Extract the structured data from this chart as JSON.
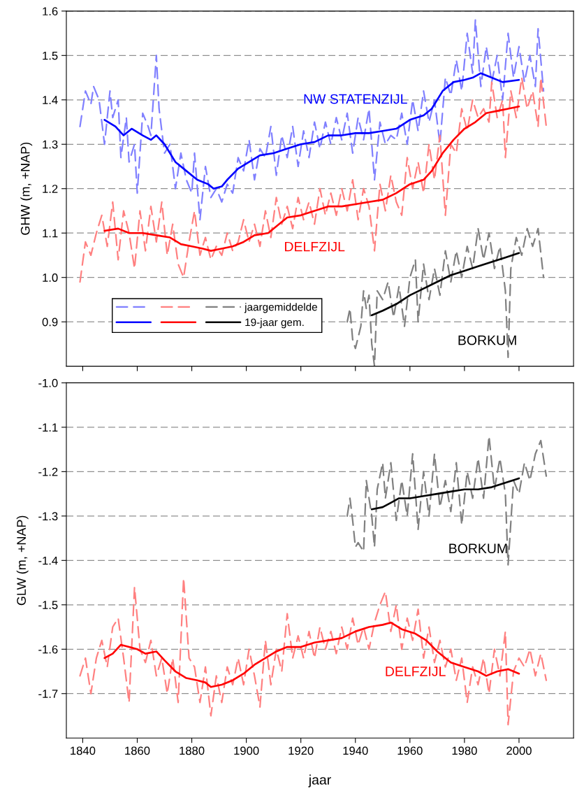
{
  "chart_data": [
    {
      "type": "line",
      "ylabel": "GHW (m, +NAP)",
      "xlim": [
        1834,
        2020
      ],
      "xticks": [
        1840,
        1860,
        1880,
        1900,
        1920,
        1940,
        1960,
        1980,
        2000
      ],
      "ylim": [
        0.8,
        1.6
      ],
      "yticks": [
        0.9,
        {
          "value": 1.0,
          "label": "1.0"
        },
        1.1,
        1.2,
        1.3,
        1.4,
        1.5,
        1.6
      ],
      "grid": "y",
      "tick_labels": "y",
      "legend": "bottom left",
      "annotations": [
        "BORKUM"
      ],
      "series": [
        {
          "color": "#8080ff",
          "line_style": "dashed",
          "x": [
            1839,
            1841,
            1843,
            1844,
            1846,
            1848,
            1850,
            1851,
            1853,
            1854,
            1856,
            1857,
            1859,
            1860,
            1862,
            1864,
            1865,
            1867,
            1868,
            1870,
            1872,
            1874,
            1876,
            1878,
            1880,
            1881,
            1883,
            1885,
            1887,
            1889,
            1891,
            1893,
            1895,
            1897,
            1899,
            1901,
            1903,
            1905,
            1907,
            1909,
            1911,
            1913,
            1915,
            1917,
            1919,
            1921,
            1923,
            1925,
            1927,
            1929,
            1931,
            1933,
            1935,
            1937,
            1939,
            1941,
            1943,
            1945,
            1947,
            1949,
            1951,
            1953,
            1955,
            1957,
            1959,
            1961,
            1963,
            1965,
            1967,
            1969,
            1971,
            1973,
            1975,
            1977,
            1979,
            1981,
            1983,
            1984,
            1986,
            1988,
            1990,
            1992,
            1994,
            1996,
            1998,
            2000,
            2002,
            2004,
            2006,
            2007,
            2009
          ],
          "values": [
            1.34,
            1.42,
            1.39,
            1.43,
            1.4,
            1.3,
            1.42,
            1.36,
            1.4,
            1.27,
            1.36,
            1.26,
            1.3,
            1.19,
            1.37,
            1.34,
            1.32,
            1.5,
            1.38,
            1.28,
            1.3,
            1.2,
            1.28,
            1.22,
            1.19,
            1.28,
            1.13,
            1.25,
            1.18,
            1.2,
            1.17,
            1.21,
            1.19,
            1.27,
            1.24,
            1.31,
            1.22,
            1.29,
            1.27,
            1.34,
            1.23,
            1.32,
            1.27,
            1.34,
            1.25,
            1.33,
            1.27,
            1.35,
            1.29,
            1.35,
            1.3,
            1.36,
            1.31,
            1.37,
            1.28,
            1.36,
            1.31,
            1.38,
            1.22,
            1.35,
            1.3,
            1.32,
            1.31,
            1.37,
            1.3,
            1.4,
            1.33,
            1.42,
            1.35,
            1.4,
            1.3,
            1.45,
            1.41,
            1.49,
            1.42,
            1.55,
            1.46,
            1.58,
            1.43,
            1.52,
            1.44,
            1.5,
            1.4,
            1.55,
            1.45,
            1.52,
            1.44,
            1.5,
            1.43,
            1.56,
            1.42
          ]
        },
        {
          "name": "NW STATENZIJL",
          "color": "#0000ff",
          "line_style": "solid",
          "x": [
            1848,
            1852,
            1855,
            1858,
            1862,
            1865,
            1867,
            1870,
            1874,
            1878,
            1882,
            1886,
            1888,
            1891,
            1893,
            1897,
            1901,
            1905,
            1910,
            1915,
            1920,
            1925,
            1930,
            1935,
            1940,
            1945,
            1950,
            1955,
            1960,
            1965,
            1968,
            1972,
            1976,
            1980,
            1983,
            1986,
            1990,
            1994,
            2000
          ],
          "values": [
            1.355,
            1.34,
            1.32,
            1.335,
            1.32,
            1.31,
            1.32,
            1.3,
            1.26,
            1.24,
            1.22,
            1.21,
            1.2,
            1.205,
            1.22,
            1.245,
            1.26,
            1.275,
            1.28,
            1.29,
            1.3,
            1.305,
            1.32,
            1.32,
            1.325,
            1.325,
            1.33,
            1.335,
            1.355,
            1.365,
            1.38,
            1.42,
            1.44,
            1.445,
            1.45,
            1.46,
            1.45,
            1.44,
            1.445
          ]
        },
        {
          "color": "#ff8080",
          "line_style": "dashed",
          "x": [
            1839,
            1841,
            1843,
            1845,
            1847,
            1849,
            1851,
            1853,
            1855,
            1857,
            1859,
            1861,
            1863,
            1865,
            1867,
            1869,
            1871,
            1873,
            1875,
            1877,
            1879,
            1881,
            1883,
            1885,
            1887,
            1889,
            1891,
            1893,
            1895,
            1897,
            1899,
            1901,
            1903,
            1905,
            1907,
            1909,
            1911,
            1913,
            1915,
            1917,
            1919,
            1921,
            1923,
            1925,
            1927,
            1929,
            1931,
            1933,
            1935,
            1937,
            1939,
            1941,
            1943,
            1945,
            1947,
            1949,
            1951,
            1953,
            1955,
            1957,
            1959,
            1961,
            1963,
            1965,
            1967,
            1969,
            1971,
            1973,
            1975,
            1977,
            1979,
            1981,
            1983,
            1985,
            1987,
            1989,
            1990,
            1992,
            1994,
            1995,
            1997,
            1999,
            2001,
            2003,
            2005,
            2007,
            2008,
            2010
          ],
          "values": [
            0.99,
            1.08,
            1.05,
            1.1,
            1.14,
            1.07,
            1.17,
            1.04,
            1.15,
            1.1,
            1.02,
            1.15,
            1.06,
            1.16,
            1.08,
            1.17,
            1.05,
            1.12,
            1.03,
            1.0,
            1.08,
            1.15,
            1.05,
            1.09,
            1.04,
            1.07,
            1.05,
            1.1,
            1.06,
            1.08,
            1.13,
            1.08,
            1.12,
            1.07,
            1.15,
            1.09,
            1.18,
            1.12,
            1.16,
            1.11,
            1.18,
            1.13,
            1.17,
            1.12,
            1.2,
            1.14,
            1.19,
            1.14,
            1.2,
            1.15,
            1.22,
            1.13,
            1.2,
            1.16,
            1.06,
            1.21,
            1.15,
            1.23,
            1.17,
            1.14,
            1.27,
            1.2,
            1.26,
            1.19,
            1.3,
            1.22,
            1.32,
            1.14,
            1.3,
            1.28,
            1.38,
            1.33,
            1.4,
            1.36,
            1.38,
            1.35,
            1.44,
            1.36,
            1.4,
            1.27,
            1.42,
            1.36,
            1.45,
            1.38,
            1.42,
            1.34,
            1.45,
            1.34
          ]
        },
        {
          "name": "DELFZIJL",
          "color": "#ff0000",
          "line_style": "solid",
          "x": [
            1848,
            1853,
            1857,
            1862,
            1867,
            1872,
            1876,
            1880,
            1884,
            1887,
            1891,
            1895,
            1899,
            1903,
            1908,
            1912,
            1915,
            1920,
            1925,
            1930,
            1935,
            1940,
            1945,
            1950,
            1955,
            1960,
            1965,
            1968,
            1972,
            1976,
            1980,
            1984,
            1988,
            1992,
            1996,
            2000
          ],
          "values": [
            1.105,
            1.11,
            1.1,
            1.1,
            1.095,
            1.09,
            1.075,
            1.07,
            1.065,
            1.06,
            1.065,
            1.07,
            1.08,
            1.095,
            1.1,
            1.12,
            1.135,
            1.14,
            1.15,
            1.16,
            1.16,
            1.165,
            1.17,
            1.175,
            1.19,
            1.21,
            1.22,
            1.24,
            1.28,
            1.31,
            1.335,
            1.35,
            1.37,
            1.375,
            1.38,
            1.385
          ]
        },
        {
          "name": "jaargemiddelde",
          "color": "#808080",
          "line_style": "dashed",
          "x": [
            1937,
            1938,
            1939,
            1940,
            1942,
            1943,
            1944,
            1945,
            1946,
            1947,
            1948,
            1950,
            1952,
            1954,
            1956,
            1958,
            1960,
            1962,
            1963,
            1965,
            1967,
            1969,
            1971,
            1973,
            1975,
            1977,
            1979,
            1981,
            1983,
            1985,
            1987,
            1989,
            1991,
            1993,
            1995,
            1996,
            1997,
            1999,
            2001,
            2003,
            2005,
            2007,
            2009
          ],
          "values": [
            0.9,
            0.93,
            0.86,
            0.84,
            0.89,
            0.97,
            0.93,
            0.96,
            0.85,
            0.8,
            0.97,
            0.95,
            0.99,
            0.91,
            0.98,
            0.89,
            1.0,
            1.04,
            0.9,
            1.03,
            0.95,
            1.02,
            0.96,
            1.06,
            0.99,
            1.06,
            1.0,
            1.07,
            1.02,
            1.11,
            1.04,
            1.1,
            1.02,
            1.07,
            0.97,
            0.82,
            1.02,
            1.09,
            1.05,
            1.11,
            1.07,
            1.11,
            1.0
          ]
        },
        {
          "name": "19-jaar gem.",
          "color": "#000000",
          "line_style": "solid",
          "x": [
            1946,
            1950,
            1955,
            1960,
            1965,
            1970,
            1975,
            1980,
            1985,
            1990,
            1995,
            2000
          ],
          "values": [
            0.915,
            0.925,
            0.94,
            0.96,
            0.975,
            0.99,
            1.005,
            1.015,
            1.025,
            1.035,
            1.045,
            1.055
          ]
        }
      ]
    },
    {
      "type": "line",
      "xlabel": "jaar",
      "ylabel": "GLW (m, +NAP)",
      "xlim": [
        1834,
        2020
      ],
      "xticks": [
        1840,
        1860,
        1880,
        1900,
        1920,
        1940,
        1960,
        1980,
        2000
      ],
      "ylim": [
        -1.8,
        -1.0
      ],
      "yticks": [
        {
          "value": -1.7,
          "label": "-1.7"
        },
        {
          "value": -1.6,
          "label": "-1.6"
        },
        {
          "value": -1.5,
          "label": "-1.5"
        },
        {
          "value": -1.4,
          "label": "-1.4"
        },
        {
          "value": -1.3,
          "label": "-1.3"
        },
        {
          "value": -1.2,
          "label": "-1.2"
        },
        {
          "value": -1.1,
          "label": "-1.1"
        },
        {
          "value": -1.0,
          "label": "-1.0"
        }
      ],
      "grid": "y",
      "series": [
        {
          "color": "#808080",
          "line_style": "dashed",
          "x": [
            1937,
            1938,
            1939,
            1940,
            1941,
            1943,
            1944,
            1946,
            1947,
            1948,
            1950,
            1951,
            1953,
            1955,
            1957,
            1959,
            1961,
            1963,
            1965,
            1967,
            1969,
            1971,
            1973,
            1975,
            1977,
            1979,
            1981,
            1983,
            1985,
            1987,
            1989,
            1991,
            1993,
            1995,
            1996,
            1998,
            2000,
            2002,
            2004,
            2006,
            2008,
            2010
          ],
          "values": [
            -1.3,
            -1.26,
            -1.31,
            -1.37,
            -1.36,
            -1.38,
            -1.22,
            -1.3,
            -1.37,
            -1.24,
            -1.18,
            -1.26,
            -1.18,
            -1.31,
            -1.22,
            -1.3,
            -1.16,
            -1.33,
            -1.2,
            -1.3,
            -1.16,
            -1.28,
            -1.22,
            -1.29,
            -1.18,
            -1.32,
            -1.2,
            -1.26,
            -1.17,
            -1.26,
            -1.12,
            -1.24,
            -1.17,
            -1.25,
            -1.41,
            -1.22,
            -1.25,
            -1.18,
            -1.22,
            -1.16,
            -1.13,
            -1.21
          ]
        },
        {
          "name": "BORKUM",
          "color": "#000000",
          "line_style": "solid",
          "x": [
            1946,
            1950,
            1953,
            1956,
            1960,
            1965,
            1970,
            1975,
            1980,
            1985,
            1990,
            1995,
            2000
          ],
          "values": [
            -1.285,
            -1.28,
            -1.27,
            -1.26,
            -1.26,
            -1.255,
            -1.25,
            -1.245,
            -1.24,
            -1.24,
            -1.235,
            -1.225,
            -1.215
          ]
        },
        {
          "color": "#ff8080",
          "line_style": "dashed",
          "x": [
            1839,
            1841,
            1843,
            1845,
            1847,
            1849,
            1851,
            1853,
            1855,
            1857,
            1859,
            1861,
            1863,
            1865,
            1867,
            1869,
            1871,
            1873,
            1875,
            1877,
            1879,
            1881,
            1883,
            1885,
            1887,
            1889,
            1891,
            1893,
            1895,
            1897,
            1899,
            1901,
            1903,
            1905,
            1907,
            1909,
            1911,
            1913,
            1915,
            1917,
            1919,
            1921,
            1923,
            1925,
            1927,
            1929,
            1931,
            1933,
            1935,
            1937,
            1939,
            1941,
            1943,
            1945,
            1947,
            1949,
            1951,
            1953,
            1955,
            1957,
            1959,
            1961,
            1963,
            1965,
            1967,
            1969,
            1971,
            1973,
            1975,
            1977,
            1979,
            1981,
            1983,
            1985,
            1987,
            1989,
            1991,
            1993,
            1995,
            1996,
            1998,
            2000,
            2002,
            2004,
            2006,
            2008,
            2010
          ],
          "values": [
            -1.66,
            -1.62,
            -1.7,
            -1.62,
            -1.58,
            -1.64,
            -1.55,
            -1.53,
            -1.62,
            -1.72,
            -1.46,
            -1.6,
            -1.63,
            -1.58,
            -1.66,
            -1.62,
            -1.7,
            -1.62,
            -1.72,
            -1.44,
            -1.62,
            -1.64,
            -1.72,
            -1.64,
            -1.75,
            -1.66,
            -1.72,
            -1.64,
            -1.68,
            -1.62,
            -1.68,
            -1.6,
            -1.66,
            -1.73,
            -1.58,
            -1.68,
            -1.6,
            -1.65,
            -1.52,
            -1.62,
            -1.57,
            -1.62,
            -1.56,
            -1.62,
            -1.55,
            -1.6,
            -1.56,
            -1.61,
            -1.55,
            -1.6,
            -1.53,
            -1.59,
            -1.55,
            -1.6,
            -1.54,
            -1.5,
            -1.47,
            -1.56,
            -1.5,
            -1.6,
            -1.53,
            -1.58,
            -1.51,
            -1.62,
            -1.55,
            -1.63,
            -1.58,
            -1.64,
            -1.6,
            -1.67,
            -1.62,
            -1.72,
            -1.64,
            -1.68,
            -1.62,
            -1.7,
            -1.6,
            -1.66,
            -1.56,
            -1.77,
            -1.65,
            -1.62,
            -1.64,
            -1.6,
            -1.66,
            -1.61,
            -1.67
          ]
        },
        {
          "name": "DELFZIJL",
          "color": "#ff0000",
          "line_style": "solid",
          "x": [
            1848,
            1851,
            1854,
            1857,
            1860,
            1863,
            1867,
            1870,
            1874,
            1878,
            1882,
            1885,
            1887,
            1891,
            1895,
            1899,
            1903,
            1907,
            1911,
            1915,
            1920,
            1925,
            1930,
            1935,
            1940,
            1945,
            1950,
            1953,
            1957,
            1962,
            1966,
            1970,
            1975,
            1980,
            1985,
            1988,
            1992,
            1996,
            2000
          ],
          "values": [
            -1.62,
            -1.61,
            -1.59,
            -1.595,
            -1.6,
            -1.61,
            -1.605,
            -1.625,
            -1.65,
            -1.665,
            -1.67,
            -1.675,
            -1.685,
            -1.68,
            -1.67,
            -1.655,
            -1.635,
            -1.62,
            -1.605,
            -1.595,
            -1.595,
            -1.585,
            -1.58,
            -1.575,
            -1.56,
            -1.55,
            -1.545,
            -1.54,
            -1.555,
            -1.565,
            -1.58,
            -1.605,
            -1.63,
            -1.64,
            -1.65,
            -1.66,
            -1.65,
            -1.645,
            -1.655
          ]
        }
      ]
    }
  ]
}
